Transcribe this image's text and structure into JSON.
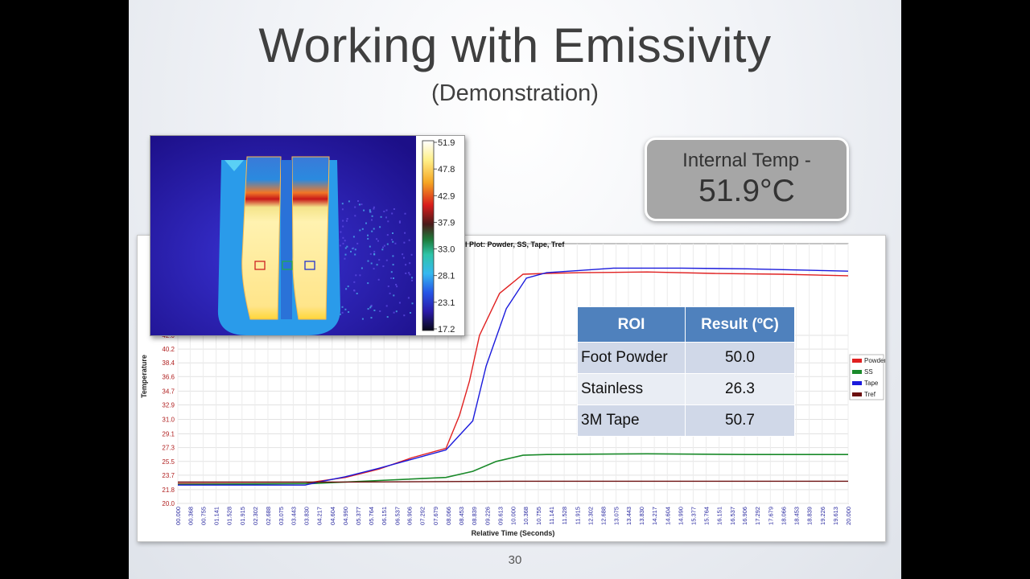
{
  "slide": {
    "title": "Working with Emissivity",
    "subtitle": "(Demonstration)",
    "page_number": "30"
  },
  "internal_temp": {
    "label": "Internal Temp -",
    "value": "51.9°C"
  },
  "thermal_image": {
    "scale_labels": [
      "51.9",
      "47.8",
      "42.9",
      "37.9",
      "33.0",
      "28.1",
      "23.1",
      "17.2"
    ],
    "roi_colors": [
      "#cc2222",
      "#22aa55",
      "#2233cc"
    ]
  },
  "roi_table": {
    "headers": [
      "ROI",
      "Result (ºC)"
    ],
    "rows": [
      {
        "roi": "Foot Powder",
        "result": "50.0"
      },
      {
        "roi": "Stainless",
        "result": "26.3"
      },
      {
        "roi": "3M Tape",
        "result": "50.7"
      }
    ]
  },
  "chart_data": {
    "type": "line",
    "title": "l Plot: Powder, SS, Tape, Tref",
    "xlabel": "Relative Time (Seconds)",
    "ylabel": "Temperature",
    "xlim": [
      0,
      20
    ],
    "ylim": [
      20.0,
      54
    ],
    "yticks": [
      "20.0",
      "21.8",
      "23.7",
      "25.5",
      "27.3",
      "29.1",
      "31.0",
      "32.9",
      "34.7",
      "36.6",
      "38.4",
      "40.2",
      "42.0"
    ],
    "xticks": [
      "00.000",
      "00.368",
      "00.755",
      "01.141",
      "01.528",
      "01.915",
      "02.302",
      "02.688",
      "03.075",
      "03.443",
      "03.830",
      "04.217",
      "04.604",
      "04.990",
      "05.377",
      "05.764",
      "06.151",
      "06.537",
      "06.906",
      "07.292",
      "07.679",
      "08.066",
      "08.453",
      "08.839",
      "09.226",
      "09.613",
      "10.000",
      "10.368",
      "10.755",
      "11.141",
      "11.528",
      "11.915",
      "12.302",
      "12.688",
      "13.075",
      "13.443",
      "13.830",
      "14.217",
      "14.604",
      "14.990",
      "15.377",
      "15.764",
      "16.151",
      "16.537",
      "16.906",
      "17.292",
      "17.679",
      "18.066",
      "18.453",
      "18.839",
      "19.226",
      "19.613",
      "20.000"
    ],
    "legend": "right",
    "grid": true,
    "series": [
      {
        "name": "Powder",
        "color": "#e02020",
        "x": [
          0,
          3.8,
          4.2,
          5.0,
          6.0,
          7.0,
          8.0,
          8.4,
          8.7,
          9.0,
          9.6,
          10.3,
          11.0,
          12.0,
          14.0,
          16.0,
          18.0,
          20.0
        ],
        "y": [
          22.6,
          22.6,
          22.9,
          23.4,
          24.5,
          26.0,
          27.2,
          31.5,
          36.0,
          42.0,
          47.5,
          50.0,
          50.1,
          50.2,
          50.3,
          50.1,
          50.0,
          49.8
        ]
      },
      {
        "name": "SS",
        "color": "#1a8a2a",
        "x": [
          0,
          4.0,
          6.0,
          8.0,
          8.8,
          9.5,
          10.3,
          11.0,
          14.0,
          17.0,
          20.0
        ],
        "y": [
          22.5,
          22.6,
          23.0,
          23.4,
          24.2,
          25.5,
          26.3,
          26.4,
          26.5,
          26.4,
          26.4
        ],
        "stroke_width": 1.6
      },
      {
        "name": "Tape",
        "color": "#1a1adc",
        "x": [
          0,
          3.8,
          4.2,
          5.0,
          6.0,
          7.0,
          8.0,
          8.8,
          9.2,
          9.8,
          10.4,
          11.0,
          12.0,
          13.0,
          15.0,
          17.0,
          20.0
        ],
        "y": [
          22.4,
          22.4,
          22.8,
          23.5,
          24.6,
          25.8,
          27.0,
          30.8,
          38.0,
          45.5,
          49.5,
          50.2,
          50.5,
          50.8,
          50.8,
          50.7,
          50.4
        ]
      },
      {
        "name": "Tref",
        "color": "#6b0f0f",
        "x": [
          0,
          5.0,
          10.0,
          15.0,
          20.0
        ],
        "y": [
          22.8,
          22.8,
          22.9,
          22.9,
          22.9
        ]
      }
    ]
  }
}
